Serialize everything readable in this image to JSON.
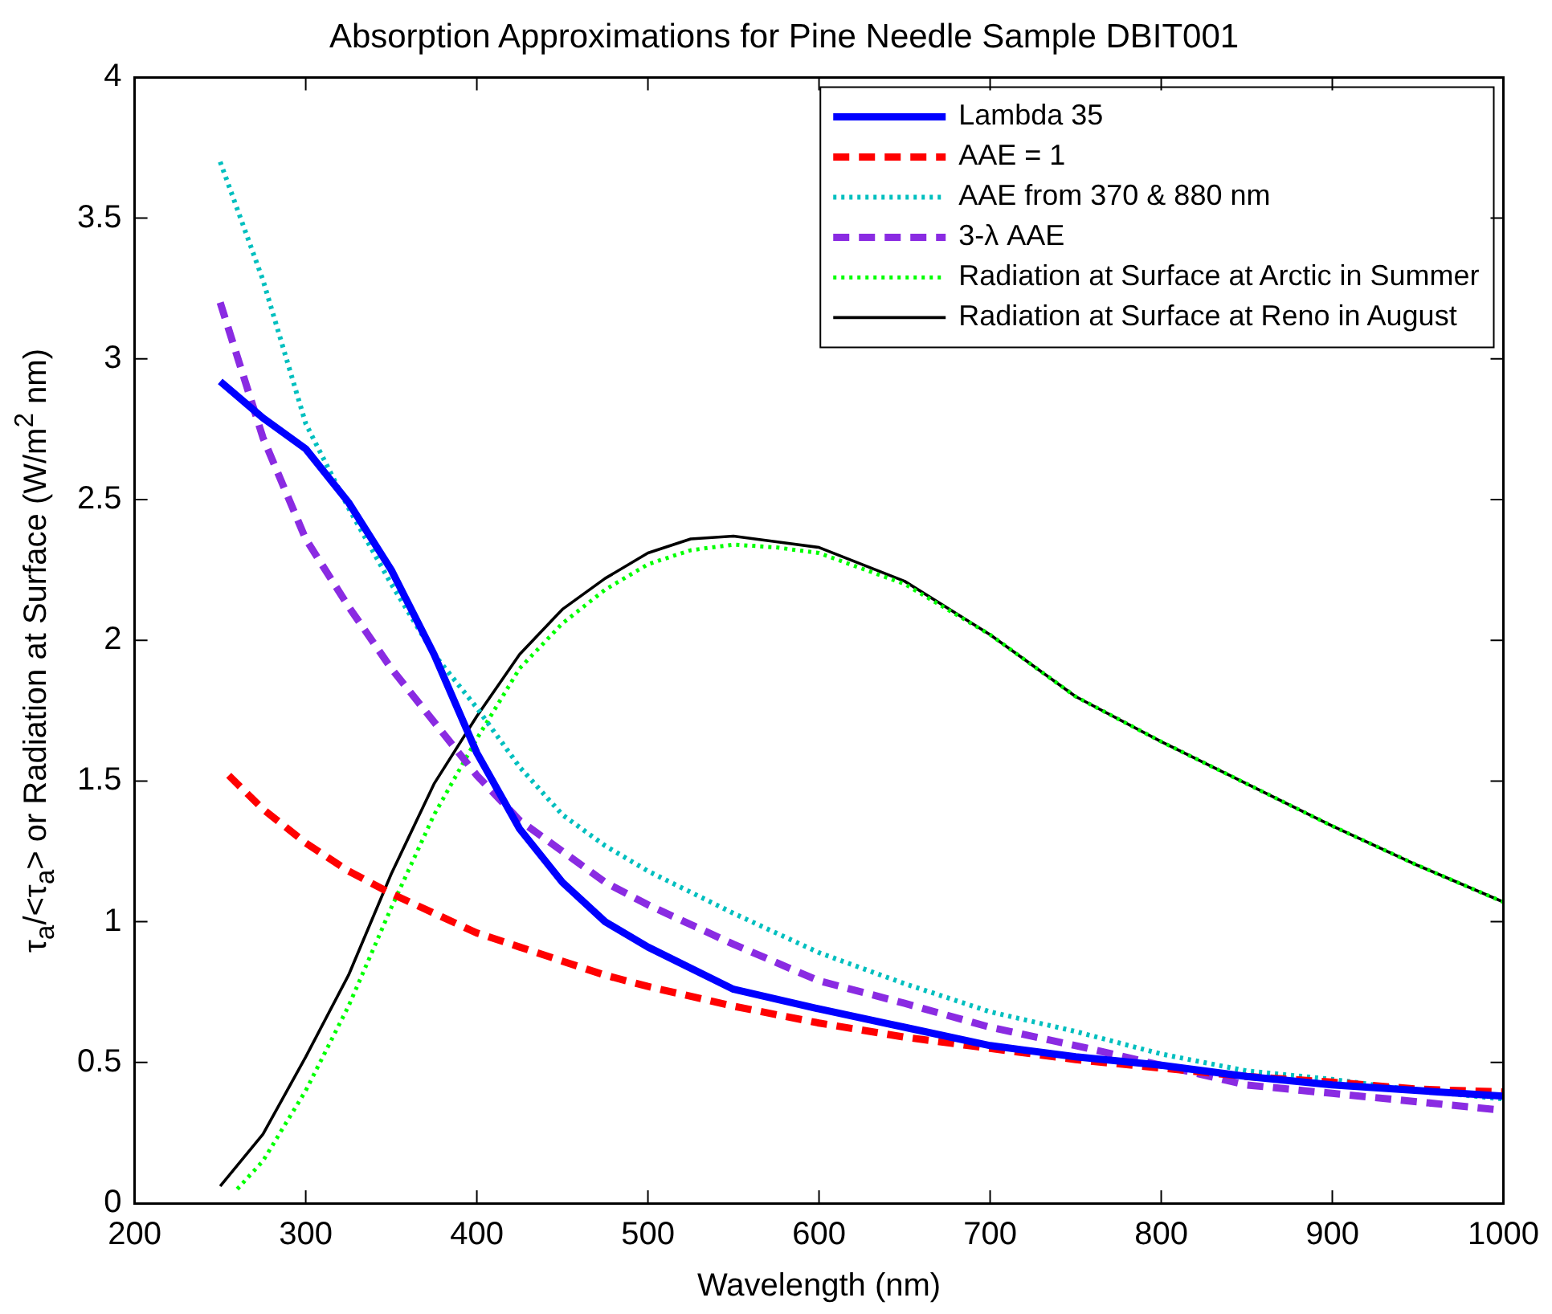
{
  "chart_data": {
    "type": "line",
    "title": "Absorption Approximations for Pine Needle Sample DBIT001",
    "xlabel": "Wavelength (nm)",
    "ylabel": "τ$_{a}$/<τ$_{a}$> or Radiation at Surface (W/m$^{2}$ nm)",
    "xlim": [
      200,
      1000
    ],
    "xticks": [
      200,
      300,
      400,
      500,
      600,
      700,
      800,
      900,
      1000
    ],
    "ylim": [
      0,
      4
    ],
    "yticks": [
      0,
      0.5,
      1,
      1.5,
      2,
      2.5,
      3,
      3.5,
      4
    ],
    "grid": false,
    "legend": "top right",
    "marker": "none",
    "series": [
      {
        "name": "Lambda 35",
        "color": "#0000ff",
        "line_style": "solid",
        "x": [
          250,
          275,
          300,
          325,
          350,
          375,
          400,
          425,
          450,
          475,
          500,
          550,
          600,
          650,
          700,
          750,
          800,
          850,
          900,
          950,
          1000
        ],
        "values": [
          2.92,
          2.79,
          2.68,
          2.49,
          2.25,
          1.95,
          1.6,
          1.33,
          1.14,
          1,
          0.91,
          0.76,
          0.69,
          0.625,
          0.56,
          0.52,
          0.49,
          0.45,
          0.42,
          0.4,
          0.38
        ]
      },
      {
        "name": "AAE = 1",
        "color": "#ff0000",
        "line_style": "dashed",
        "x": [
          255,
          275,
          300,
          325,
          350,
          375,
          400,
          425,
          450,
          475,
          500,
          550,
          600,
          650,
          700,
          750,
          800,
          850,
          900,
          950,
          1000
        ],
        "values": [
          1.52,
          1.4,
          1.28,
          1.18,
          1.1,
          1.03,
          0.96,
          0.91,
          0.86,
          0.81,
          0.77,
          0.7,
          0.64,
          0.59,
          0.55,
          0.51,
          0.48,
          0.45,
          0.43,
          0.405,
          0.395
        ]
      },
      {
        "name": "AAE from 370 & 880 nm",
        "color": "#00bfbf",
        "line_style": "dotted",
        "x": [
          250,
          275,
          300,
          325,
          350,
          375,
          400,
          425,
          450,
          475,
          500,
          550,
          600,
          650,
          700,
          750,
          800,
          850,
          900,
          950,
          1000
        ],
        "values": [
          3.7,
          3.28,
          2.77,
          2.47,
          2.2,
          1.95,
          1.76,
          1.55,
          1.38,
          1.27,
          1.18,
          1.03,
          0.89,
          0.78,
          0.68,
          0.61,
          0.53,
          0.47,
          0.44,
          0.4,
          0.37
        ]
      },
      {
        "name": "3-λ AAE",
        "color": "#8a2be2",
        "line_style": "dashed",
        "x": [
          250,
          275,
          300,
          325,
          350,
          375,
          400,
          425,
          450,
          475,
          500,
          550,
          600,
          650,
          700,
          750,
          800,
          850,
          900,
          950,
          1000
        ],
        "values": [
          3.2,
          2.72,
          2.36,
          2.12,
          1.9,
          1.71,
          1.52,
          1.36,
          1.25,
          1.14,
          1.06,
          0.92,
          0.79,
          0.71,
          0.625,
          0.56,
          0.49,
          0.42,
          0.39,
          0.36,
          0.33
        ]
      },
      {
        "name": "Radiation at Surface at Arctic in Summer",
        "color": "#00ff00",
        "line_style": "dotted",
        "x": [
          260,
          275,
          300,
          325,
          350,
          375,
          400,
          425,
          450,
          475,
          500,
          525,
          550,
          575,
          600,
          650,
          700,
          750,
          800,
          850,
          900,
          950,
          1000
        ],
        "values": [
          0.05,
          0.15,
          0.4,
          0.7,
          1.05,
          1.38,
          1.65,
          1.9,
          2.06,
          2.18,
          2.27,
          2.32,
          2.34,
          2.33,
          2.31,
          2.2,
          2.02,
          1.8,
          1.64,
          1.49,
          1.34,
          1.2,
          1.07
        ]
      },
      {
        "name": "Radiation at Surface at Reno in August",
        "color": "#000000",
        "line_style": "solid",
        "x": [
          250,
          275,
          300,
          325,
          350,
          375,
          400,
          425,
          450,
          475,
          500,
          525,
          550,
          575,
          600,
          650,
          700,
          750,
          800,
          850,
          900,
          950,
          1000
        ],
        "values": [
          0.06,
          0.245,
          0.52,
          0.81,
          1.17,
          1.49,
          1.73,
          1.95,
          2.11,
          2.22,
          2.31,
          2.36,
          2.37,
          2.35,
          2.33,
          2.21,
          2.02,
          1.8,
          1.64,
          1.49,
          1.34,
          1.2,
          1.07
        ]
      }
    ]
  }
}
